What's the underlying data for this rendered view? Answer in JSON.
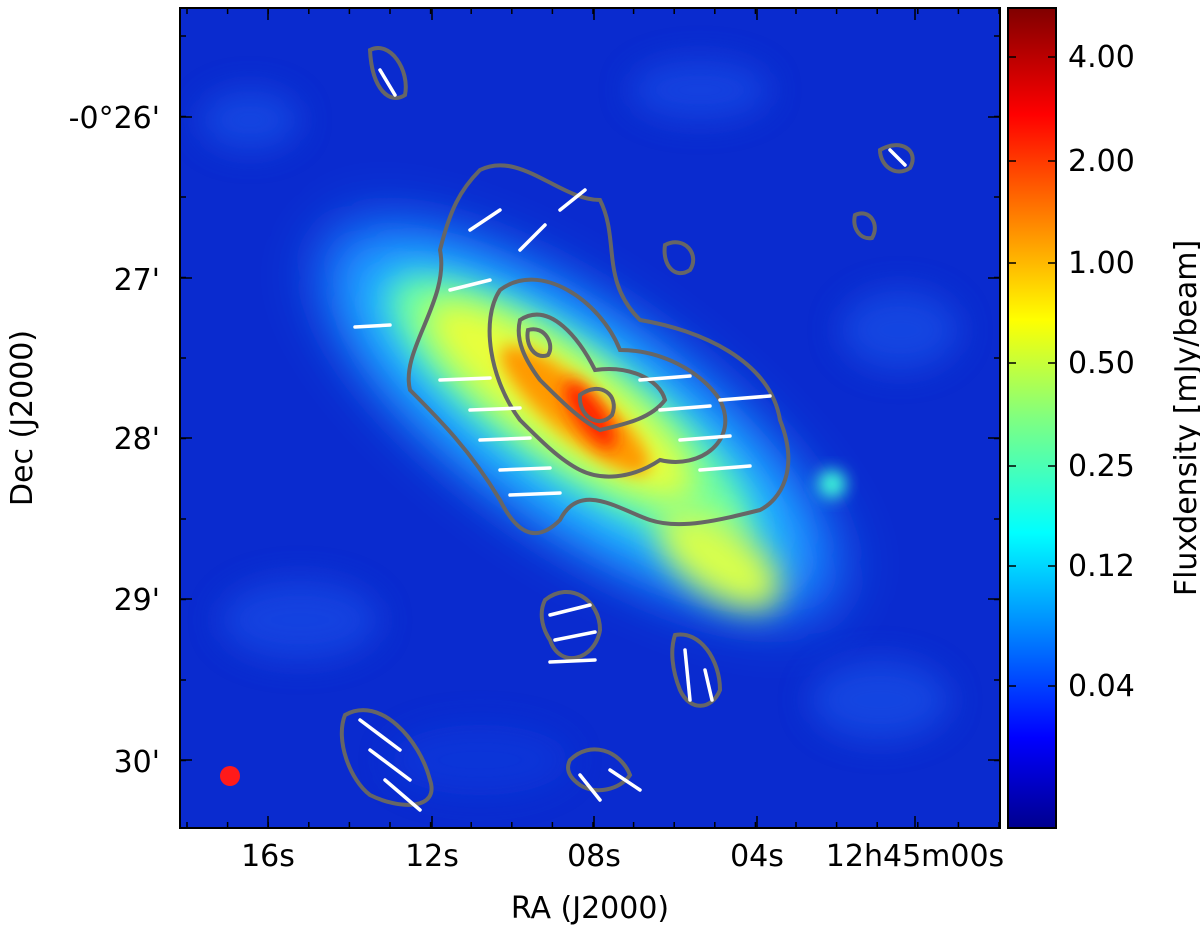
{
  "chart_data": {
    "type": "heatmap",
    "xlabel": "RA (J2000)",
    "ylabel": "Dec (J2000)",
    "colorbar_label": "Fluxdensity [mJy/beam]",
    "x_ticks": [
      "16s",
      "12s",
      "08s",
      "04s",
      "12h45m00s"
    ],
    "y_ticks": [
      "-0°26'",
      "27'",
      "28'",
      "29'",
      "30'"
    ],
    "colorbar_ticks": [
      "4.00",
      "2.00",
      "1.00",
      "0.50",
      "0.25",
      "0.12",
      "0.04"
    ],
    "colormap": "jet",
    "contour_color": "#666666",
    "vector_color": "#ffffff",
    "beam_color": "#ff1a1a",
    "grid": false
  }
}
